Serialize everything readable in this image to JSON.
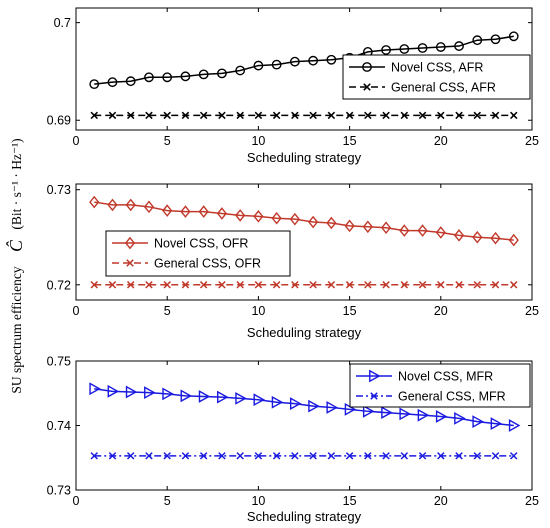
{
  "ylabel": {
    "text": "SU spectrum efficiency",
    "symbol": "Ĉ",
    "unit": "(Bit · s⁻¹ · Hz⁻¹)"
  },
  "chart_data": [
    {
      "type": "line",
      "xlabel": "Scheduling strategy",
      "xlim": [
        0,
        25
      ],
      "ylim": [
        0.689,
        0.7015
      ],
      "xticks": [
        "0",
        "5",
        "10",
        "15",
        "20",
        "25"
      ],
      "yticks": [
        {
          "v": 0.69,
          "label": "0.69"
        },
        {
          "v": 0.7,
          "label": "0.7"
        }
      ],
      "x": [
        1,
        2,
        3,
        4,
        5,
        6,
        7,
        8,
        9,
        10,
        11,
        12,
        13,
        14,
        15,
        16,
        17,
        18,
        19,
        20,
        21,
        22,
        23,
        24
      ],
      "legend_position": "right",
      "series": [
        {
          "name": "Novel CSS,  AFR",
          "color": "#000000",
          "marker": "circle",
          "dash": "solid",
          "values": [
            0.6937,
            0.6939,
            0.694,
            0.6944,
            0.6944,
            0.6945,
            0.6947,
            0.6948,
            0.6951,
            0.6956,
            0.6957,
            0.696,
            0.6961,
            0.6962,
            0.6964,
            0.697,
            0.6972,
            0.6973,
            0.6974,
            0.6975,
            0.6976,
            0.6982,
            0.6983,
            0.6986
          ]
        },
        {
          "name": "General CSS,  AFR",
          "color": "#000000",
          "marker": "x",
          "dash": "dashed",
          "values": [
            0.6905,
            0.6905,
            0.6905,
            0.6905,
            0.6905,
            0.6905,
            0.6905,
            0.6905,
            0.6905,
            0.6905,
            0.6905,
            0.6905,
            0.6905,
            0.6905,
            0.6905,
            0.6905,
            0.6905,
            0.6905,
            0.6905,
            0.6905,
            0.6905,
            0.6905,
            0.6905,
            0.6905
          ]
        }
      ]
    },
    {
      "type": "line",
      "xlabel": "Scheduling strategy",
      "xlim": [
        0,
        25
      ],
      "ylim": [
        0.7184,
        0.7306
      ],
      "xticks": [
        "0",
        "5",
        "10",
        "15",
        "20",
        "25"
      ],
      "yticks": [
        {
          "v": 0.72,
          "label": "0.72"
        },
        {
          "v": 0.73,
          "label": "0.73"
        }
      ],
      "x": [
        1,
        2,
        3,
        4,
        5,
        6,
        7,
        8,
        9,
        10,
        11,
        12,
        13,
        14,
        15,
        16,
        17,
        18,
        19,
        20,
        21,
        22,
        23,
        24
      ],
      "legend_position": "left",
      "series": [
        {
          "name": "Novel CSS,  OFR",
          "color": "#c0392b",
          "marker": "diamond",
          "dash": "solid",
          "values": [
            0.7287,
            0.7284,
            0.7284,
            0.7282,
            0.7278,
            0.7277,
            0.7277,
            0.7275,
            0.7273,
            0.7272,
            0.727,
            0.7269,
            0.7266,
            0.7265,
            0.7262,
            0.7261,
            0.726,
            0.7257,
            0.7257,
            0.7255,
            0.7252,
            0.725,
            0.7249,
            0.7247
          ]
        },
        {
          "name": "General CSS,  OFR",
          "color": "#c0392b",
          "marker": "x",
          "dash": "dashed",
          "values": [
            0.72,
            0.72,
            0.72,
            0.72,
            0.72,
            0.72,
            0.72,
            0.72,
            0.72,
            0.72,
            0.72,
            0.72,
            0.72,
            0.72,
            0.72,
            0.72,
            0.72,
            0.72,
            0.72,
            0.72,
            0.72,
            0.72,
            0.72,
            0.72
          ]
        }
      ]
    },
    {
      "type": "line",
      "xlabel": "Scheduling strategy",
      "xlim": [
        0,
        25
      ],
      "ylim": [
        0.73,
        0.75
      ],
      "xticks": [
        "0",
        "5",
        "10",
        "15",
        "20",
        "25"
      ],
      "yticks": [
        {
          "v": 0.73,
          "label": "0.73"
        },
        {
          "v": 0.74,
          "label": "0.74"
        },
        {
          "v": 0.75,
          "label": "0.75"
        }
      ],
      "x": [
        1,
        2,
        3,
        4,
        5,
        6,
        7,
        8,
        9,
        10,
        11,
        12,
        13,
        14,
        15,
        16,
        17,
        18,
        19,
        20,
        21,
        22,
        23,
        24
      ],
      "legend_position": "right",
      "series": [
        {
          "name": "Novel CSS,  MFR",
          "color": "#1a1ae0",
          "marker": "triangle",
          "dash": "solid",
          "values": [
            0.7457,
            0.7453,
            0.7452,
            0.7451,
            0.7449,
            0.7446,
            0.7445,
            0.7444,
            0.7442,
            0.744,
            0.7436,
            0.7434,
            0.743,
            0.7428,
            0.7425,
            0.7422,
            0.742,
            0.7418,
            0.7416,
            0.7414,
            0.7411,
            0.7406,
            0.7403,
            0.74
          ]
        },
        {
          "name": "General CSS,  MFR",
          "color": "#1a1ae0",
          "marker": "x",
          "dash": "dashdot",
          "values": [
            0.7353,
            0.7353,
            0.7353,
            0.7353,
            0.7353,
            0.7353,
            0.7353,
            0.7353,
            0.7353,
            0.7353,
            0.7353,
            0.7353,
            0.7353,
            0.7353,
            0.7353,
            0.7353,
            0.7353,
            0.7353,
            0.7353,
            0.7353,
            0.7353,
            0.7353,
            0.7353,
            0.7353
          ]
        }
      ]
    }
  ]
}
